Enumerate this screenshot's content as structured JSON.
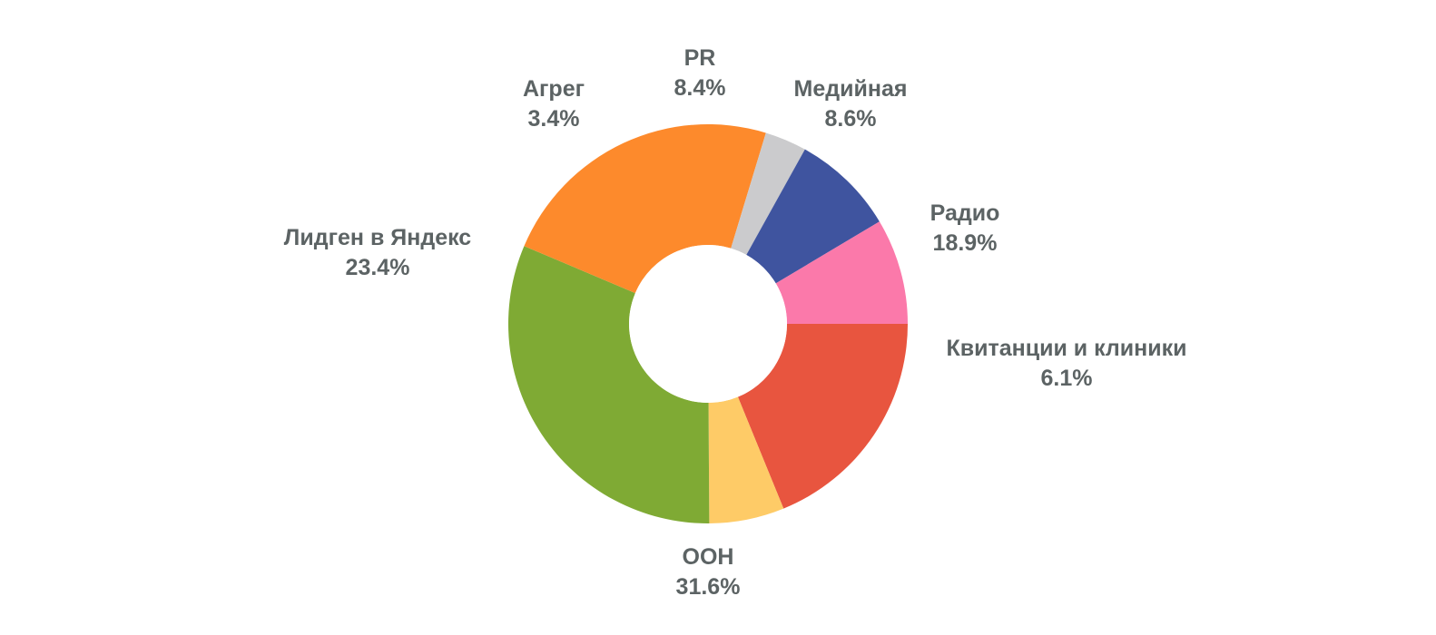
{
  "chart_data": {
    "type": "pie",
    "donut": true,
    "title": "",
    "slices": [
      {
        "label": "Радио",
        "value": 18.9,
        "display": "18.9%",
        "color": "#e8553f"
      },
      {
        "label": "Квитанции и клиники",
        "value": 6.1,
        "display": "6.1%",
        "color": "#fecb67"
      },
      {
        "label": "OOH",
        "value": 31.6,
        "display": "31.6%",
        "color": "#7faa34"
      },
      {
        "label": "Лидген в Яндекс",
        "value": 23.4,
        "display": "23.4%",
        "color": "#fd8a2c"
      },
      {
        "label": "Агрег",
        "value": 3.4,
        "display": "3.4%",
        "color": "#cbcbcd"
      },
      {
        "label": "PR",
        "value": 8.4,
        "display": "8.4%",
        "color": "#3f549f"
      },
      {
        "label": "Медийная",
        "value": 8.6,
        "display": "8.6%",
        "color": "#fb79aa"
      }
    ],
    "label_color": "#5c6364",
    "background": "#ffffff"
  }
}
